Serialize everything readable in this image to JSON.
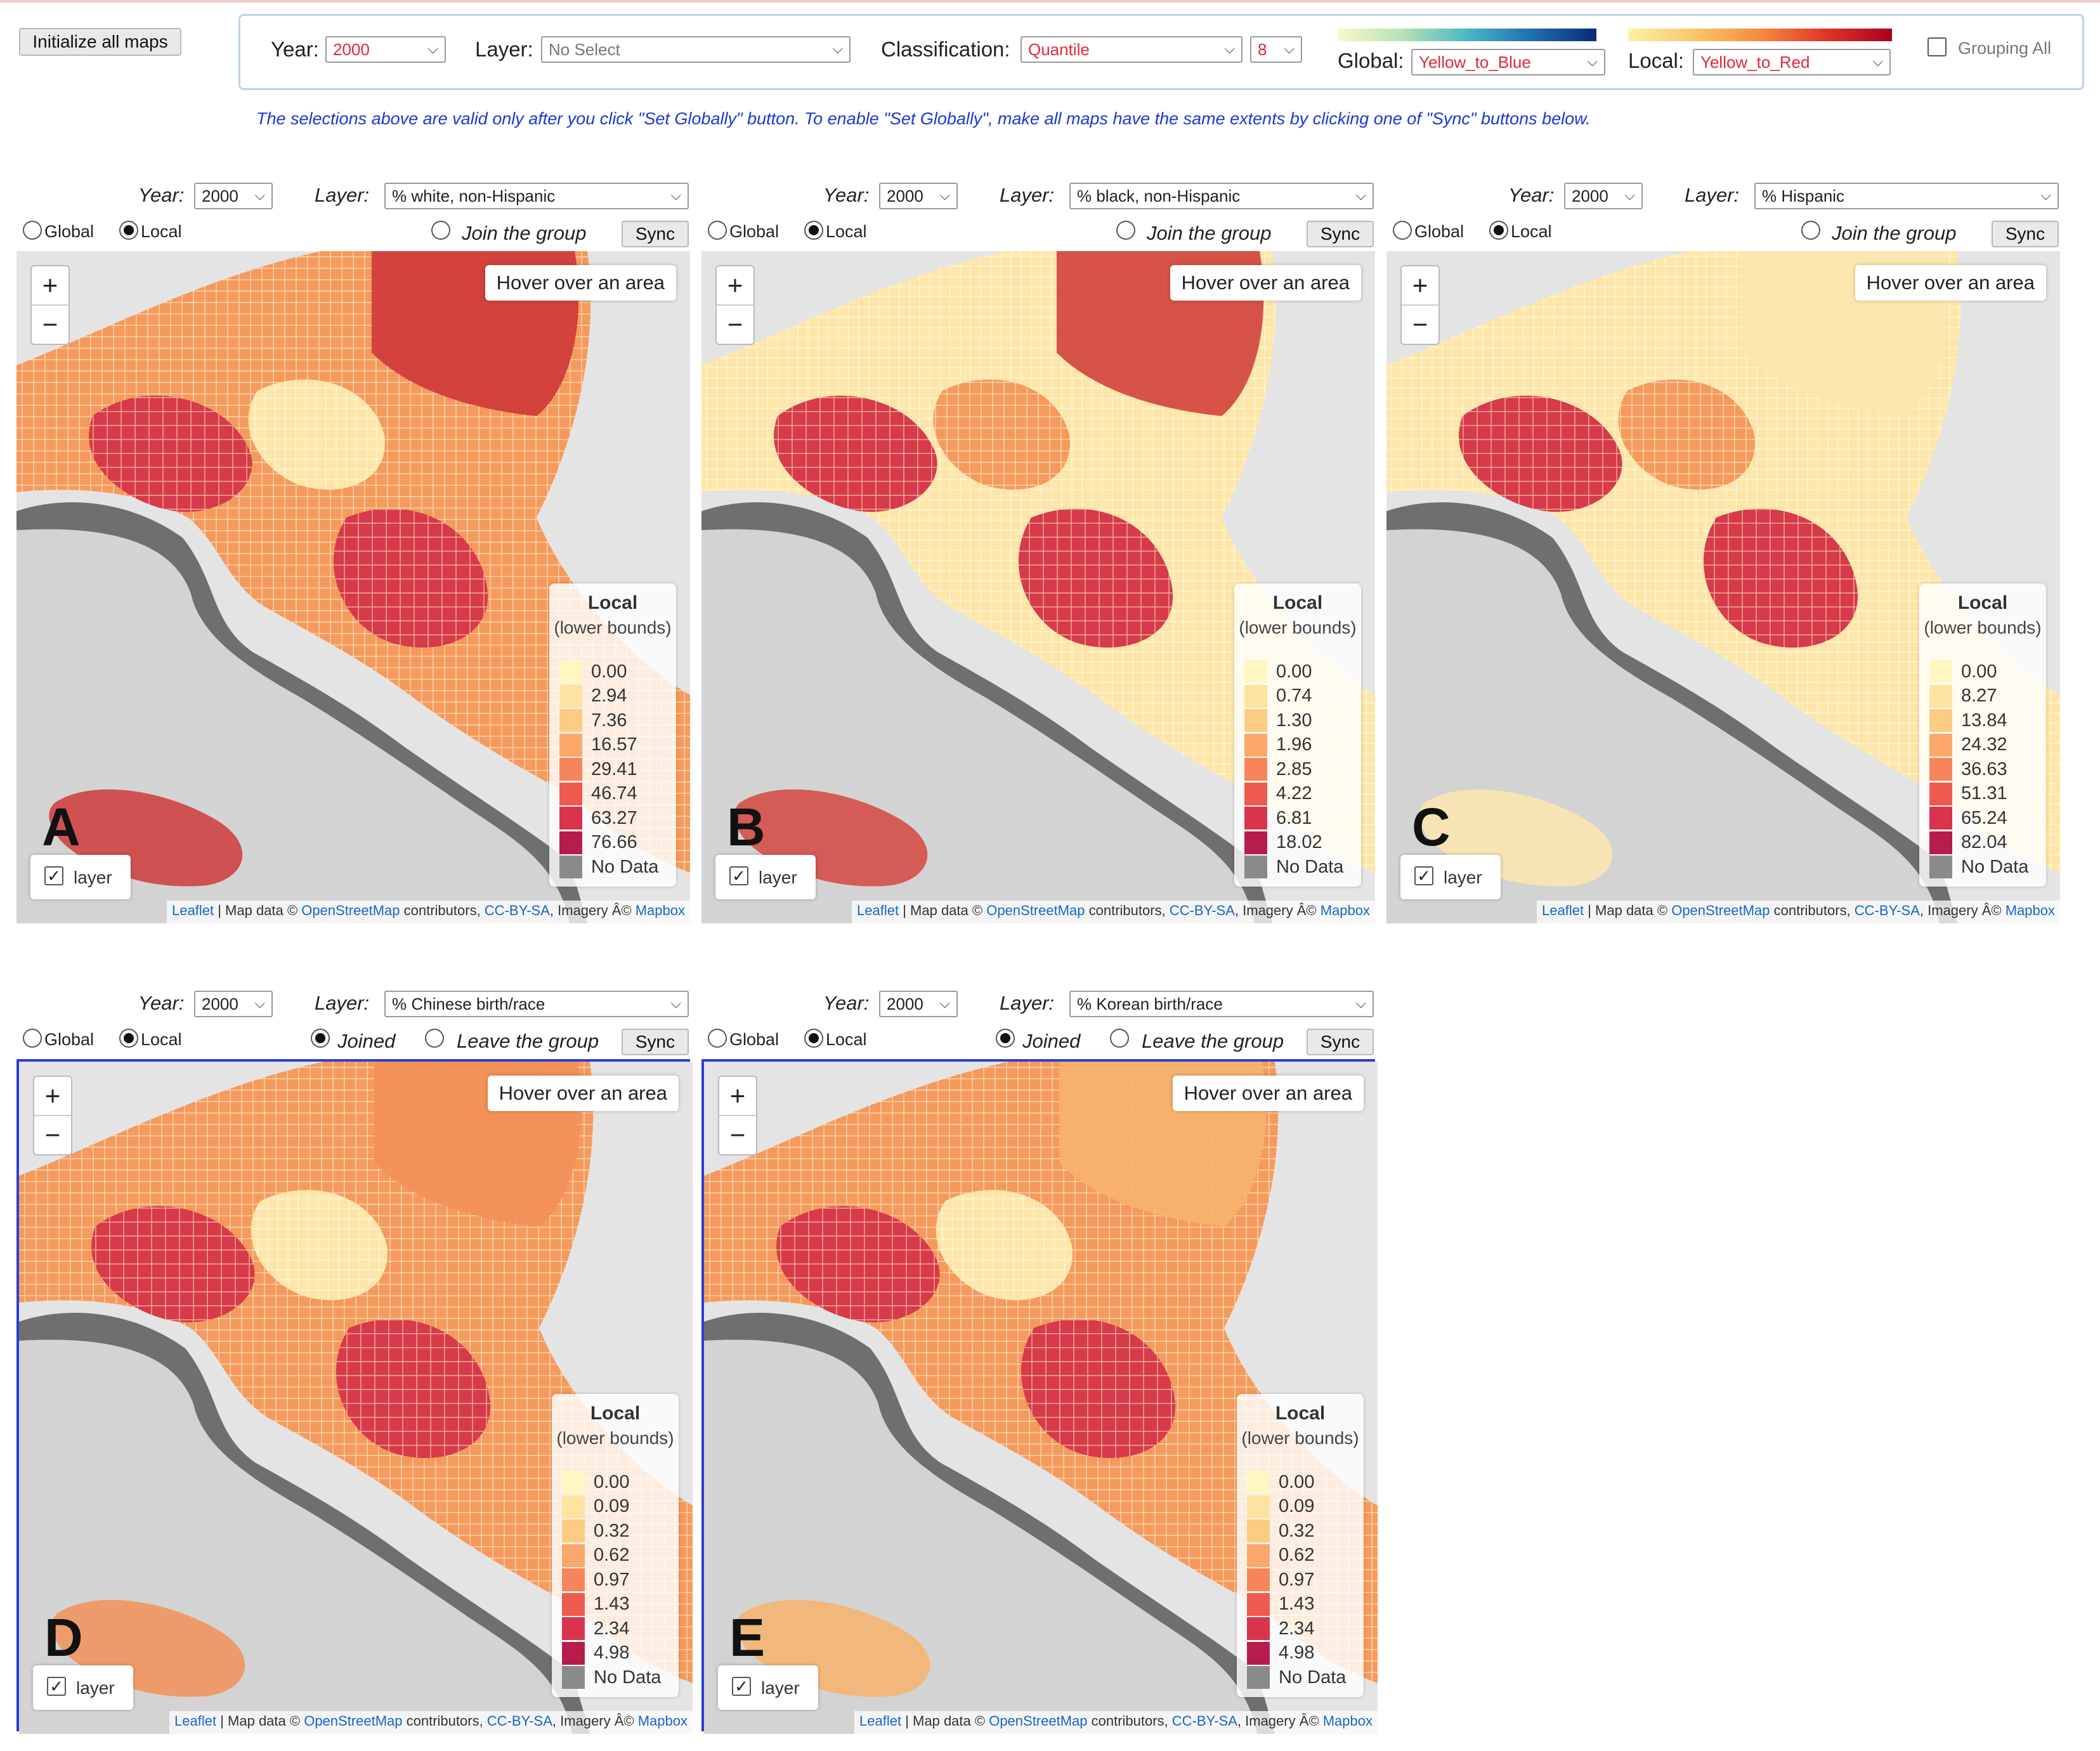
{
  "top": {
    "init_button": "Initialize all maps",
    "year_label": "Year:",
    "year_value": "2000",
    "layer_label": "Layer:",
    "layer_value": "No Select",
    "classification_label": "Classification:",
    "classification_value": "Quantile",
    "classes_value": "8",
    "global_label": "Global:",
    "global_value": "Yellow_to_Blue",
    "local_label": "Local:",
    "local_value": "Yellow_to_Red",
    "grouping_label": "Grouping All",
    "note": "The selections above are valid only after you click \"Set Globally\" button. To enable \"Set Globally\", make all maps have the same extents by clicking one of \"Sync\" buttons below."
  },
  "common": {
    "year_label": "Year:",
    "layer_label": "Layer:",
    "global_radio": "Global",
    "local_radio": "Local",
    "sync_button": "Sync",
    "hover_text": "Hover over an area",
    "legend_title": "Local",
    "legend_subtitle": "(lower bounds)",
    "no_data": "No Data",
    "layer_toggle": "layer",
    "attr_leaflet": "Leaflet",
    "attr_mid": " | Map data © ",
    "attr_osm": "OpenStreetMap",
    "attr_contrib": " contributors, ",
    "attr_cc": "CC-BY-SA",
    "attr_imagery": ", Imagery Â© ",
    "attr_mapbox": "Mapbox"
  },
  "ramps": {
    "global": [
      "#fbf7c8",
      "#b6e3b6",
      "#4cb6c4",
      "#1f6fb0",
      "#0c2a74"
    ],
    "local": [
      "#fbf1a6",
      "#fbc66b",
      "#f58a3f",
      "#e0352a",
      "#a8001f"
    ],
    "legend_swatches": [
      "#fff7c2",
      "#fde3a0",
      "#fccc83",
      "#fba86a",
      "#f7845a",
      "#ef5a4f",
      "#d9344c",
      "#b71d4b"
    ],
    "no_data_swatch": "#8a8a8a"
  },
  "maps": [
    {
      "letter": "A",
      "year": "2000",
      "layer": "% white, non-Hispanic",
      "group_text": "Join the group",
      "joined": false,
      "legend": [
        "0.00",
        "2.94",
        "7.36",
        "16.57",
        "29.41",
        "46.74",
        "63.27",
        "76.66"
      ]
    },
    {
      "letter": "B",
      "year": "2000",
      "layer": "% black, non-Hispanic",
      "group_text": "Join the group",
      "joined": false,
      "legend": [
        "0.00",
        "0.74",
        "1.30",
        "1.96",
        "2.85",
        "4.22",
        "6.81",
        "18.02"
      ]
    },
    {
      "letter": "C",
      "year": "2000",
      "layer": "% Hispanic",
      "group_text": "Join the group",
      "joined": false,
      "legend": [
        "0.00",
        "8.27",
        "13.84",
        "24.32",
        "36.63",
        "51.31",
        "65.24",
        "82.04"
      ]
    },
    {
      "letter": "D",
      "year": "2000",
      "layer": "% Chinese birth/race",
      "group_text": "Leave the group",
      "joined": true,
      "joined_text": "Joined",
      "legend": [
        "0.00",
        "0.09",
        "0.32",
        "0.62",
        "0.97",
        "1.43",
        "2.34",
        "4.98"
      ]
    },
    {
      "letter": "E",
      "year": "2000",
      "layer": "% Korean birth/race",
      "group_text": "Leave the group",
      "joined": true,
      "joined_text": "Joined",
      "legend": [
        "0.00",
        "0.09",
        "0.32",
        "0.62",
        "0.97",
        "1.43",
        "2.34",
        "4.98"
      ]
    }
  ]
}
